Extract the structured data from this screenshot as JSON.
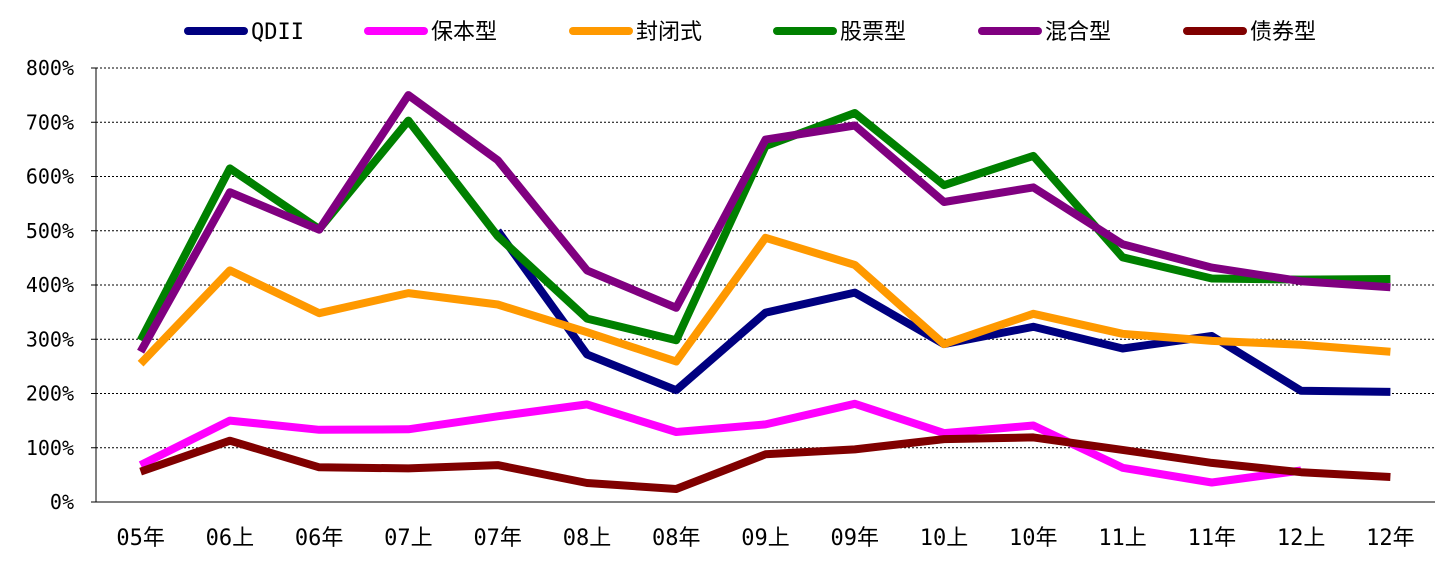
{
  "chart_data": {
    "type": "line",
    "title": "",
    "xlabel": "",
    "ylabel": "",
    "categories": [
      "05年",
      "06上",
      "06年",
      "07上",
      "07年",
      "08上",
      "08年",
      "09上",
      "09年",
      "10上",
      "10年",
      "11上",
      "11年",
      "12上",
      "12年"
    ],
    "ylim": [
      0,
      800
    ],
    "yticks": [
      0,
      100,
      200,
      300,
      400,
      500,
      600,
      700,
      800
    ],
    "ytick_labels": [
      "0%",
      "100%",
      "200%",
      "300%",
      "400%",
      "500%",
      "600%",
      "700%",
      "800%"
    ],
    "grid": true,
    "legend_position": "top",
    "series": [
      {
        "name": "QDII",
        "color": "#000080",
        "values": [
          null,
          null,
          null,
          null,
          500,
          272,
          206,
          349,
          386,
          291,
          323,
          283,
          306,
          205,
          203
        ]
      },
      {
        "name": "保本型",
        "color": "#FF00FF",
        "values": [
          68,
          150,
          133,
          134,
          158,
          180,
          129,
          143,
          181,
          127,
          141,
          63,
          36,
          58,
          null
        ]
      },
      {
        "name": "封闭式",
        "color": "#FF9900",
        "values": [
          255,
          427,
          348,
          385,
          364,
          313,
          259,
          487,
          437,
          291,
          347,
          310,
          297,
          290,
          277
        ]
      },
      {
        "name": "股票型",
        "color": "#008000",
        "values": [
          298,
          615,
          503,
          703,
          490,
          338,
          298,
          656,
          717,
          584,
          638,
          451,
          412,
          410,
          411
        ]
      },
      {
        "name": "混合型",
        "color": "#800080",
        "values": [
          277,
          571,
          502,
          750,
          630,
          427,
          358,
          668,
          694,
          553,
          580,
          475,
          432,
          407,
          396
        ]
      },
      {
        "name": "债券型",
        "color": "#800000",
        "values": [
          56,
          113,
          64,
          62,
          68,
          35,
          24,
          88,
          97,
          116,
          119,
          96,
          72,
          55,
          46
        ]
      }
    ]
  }
}
